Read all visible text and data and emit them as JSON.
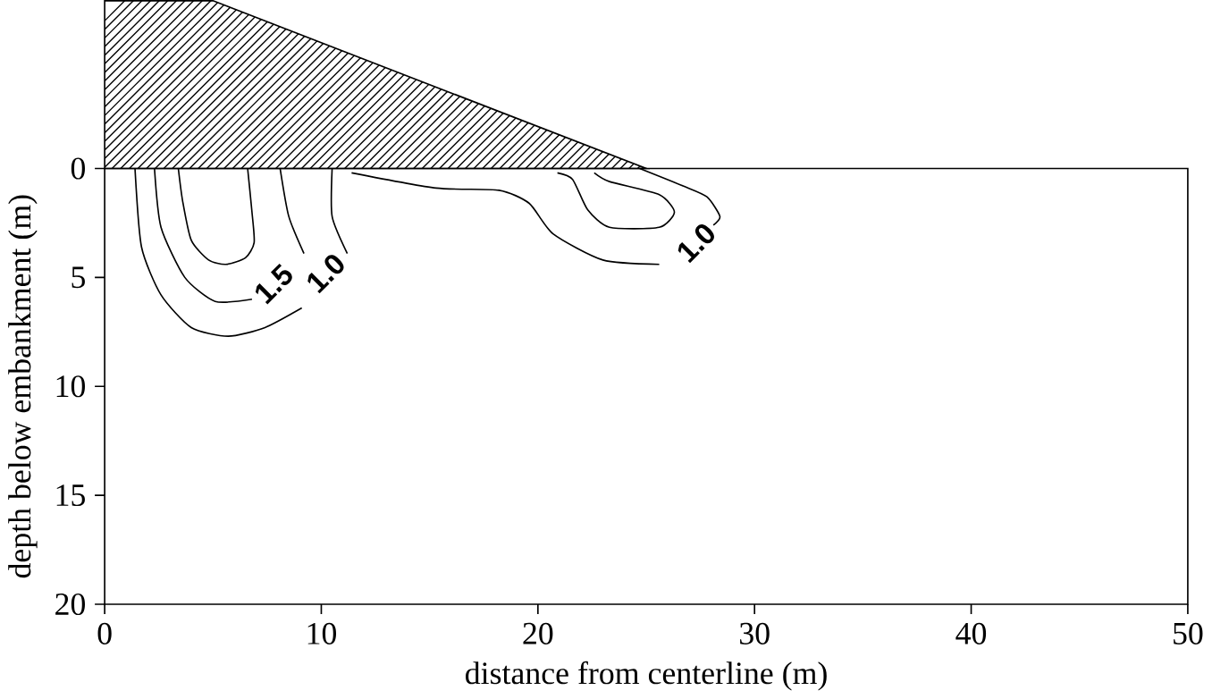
{
  "chart_data": {
    "type": "line",
    "xlabel": "distance from centerline (m)",
    "ylabel": "depth below embankment (m)",
    "xlim": [
      0,
      50
    ],
    "ylim": [
      20,
      0
    ],
    "xticks": [
      0,
      10,
      20,
      30,
      40,
      50
    ],
    "yticks": [
      0,
      5,
      10,
      15,
      20
    ],
    "series": [
      {
        "color": "#000000",
        "x": [
          3.4,
          3.6,
          4.0,
          4.8,
          5.6,
          6.5,
          6.9,
          6.8,
          6.6
        ],
        "values": [
          0,
          1.5,
          3.3,
          4.2,
          4.4,
          4.1,
          3.4,
          2.0,
          0
        ]
      },
      {
        "color": "#000000",
        "x": [
          2.3,
          2.6,
          3.7,
          5.1,
          6.8
        ],
        "values": [
          0,
          2.7,
          5.0,
          6.1,
          6.0
        ]
      },
      {
        "color": "#000000",
        "x": [
          8.1,
          8.5,
          9.2
        ],
        "values": [
          0,
          2.2,
          3.9
        ]
      },
      {
        "color": "#000000",
        "x": [
          1.4,
          1.7,
          2.6,
          4.0,
          5.7,
          7.4,
          9.1
        ],
        "values": [
          0,
          3.6,
          5.8,
          7.3,
          7.7,
          7.3,
          6.4
        ]
      },
      {
        "color": "#000000",
        "x": [
          10.5,
          10.5,
          11.2
        ],
        "values": [
          0,
          2.2,
          3.9
        ]
      },
      {
        "color": "#000000",
        "x": [
          24.7,
          26.7,
          27.8,
          28.4,
          28.1
        ],
        "values": [
          0,
          0.8,
          1.3,
          2.2,
          2.6
        ]
      },
      {
        "color": "#000000",
        "x": [
          25.6,
          23.0,
          20.7,
          19.6,
          18.2,
          15.3,
          11.4
        ],
        "values": [
          4.4,
          4.2,
          3.0,
          1.6,
          1.0,
          0.9,
          0.2
        ]
      },
      {
        "color": "#000000",
        "x": [
          20.9,
          21.6,
          22.3,
          23.3,
          25.6,
          26.3,
          25.6,
          23.3,
          22.6
        ],
        "values": [
          0.2,
          0.5,
          1.9,
          2.7,
          2.7,
          2.0,
          1.2,
          0.6,
          0.2
        ]
      }
    ],
    "annotations": [
      "1.5",
      "1.0",
      "1.0"
    ]
  }
}
